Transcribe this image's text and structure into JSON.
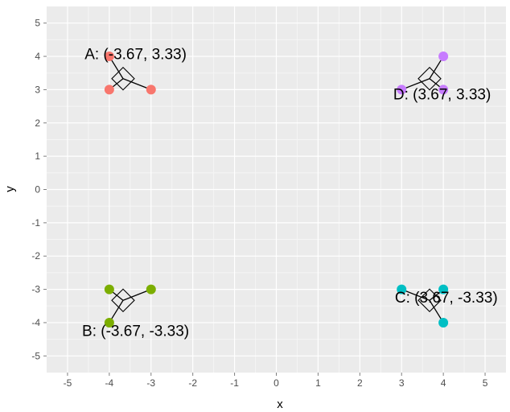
{
  "chart_data": {
    "type": "scatter",
    "xlabel": "x",
    "ylabel": "y",
    "xlim": [
      -5.5,
      5.5
    ],
    "ylim": [
      -5.5,
      5.5
    ],
    "xticks": [
      -5,
      -4,
      -3,
      -2,
      -1,
      0,
      1,
      2,
      3,
      4,
      5
    ],
    "yticks": [
      -5,
      -4,
      -3,
      -2,
      -1,
      0,
      1,
      2,
      3,
      4,
      5
    ],
    "xtick_labels": [
      "-5",
      "-4",
      "-3",
      "-2",
      "-1",
      "0",
      "1",
      "2",
      "3",
      "4",
      "5"
    ],
    "ytick_labels": [
      "-5",
      "-4",
      "-3",
      "-2",
      "-1",
      "0",
      "1",
      "2",
      "3",
      "4",
      "5"
    ],
    "grid": true,
    "legend": "none",
    "groups": [
      {
        "id": "A",
        "color": "#F8766D",
        "points": [
          [
            -4,
            4
          ],
          [
            -4,
            3
          ],
          [
            -3,
            3
          ]
        ],
        "centroid": [
          -3.67,
          3.33
        ],
        "label": "A: (-3.67, 3.33)"
      },
      {
        "id": "B",
        "color": "#7CAE00",
        "points": [
          [
            -4,
            -3
          ],
          [
            -4,
            -4
          ],
          [
            -3,
            -3
          ]
        ],
        "centroid": [
          -3.67,
          -3.33
        ],
        "label": "B: (-3.67, -3.33)"
      },
      {
        "id": "C",
        "color": "#00BFC4",
        "points": [
          [
            3,
            -3
          ],
          [
            4,
            -3
          ],
          [
            4,
            -4
          ]
        ],
        "centroid": [
          3.67,
          -3.33
        ],
        "label": "C: (3.67, -3.33)"
      },
      {
        "id": "D",
        "color": "#C77CFF",
        "points": [
          [
            3,
            3
          ],
          [
            4,
            3
          ],
          [
            4,
            4
          ]
        ],
        "centroid": [
          3.67,
          3.33
        ],
        "label": "D: (3.67, 3.33)"
      }
    ]
  }
}
